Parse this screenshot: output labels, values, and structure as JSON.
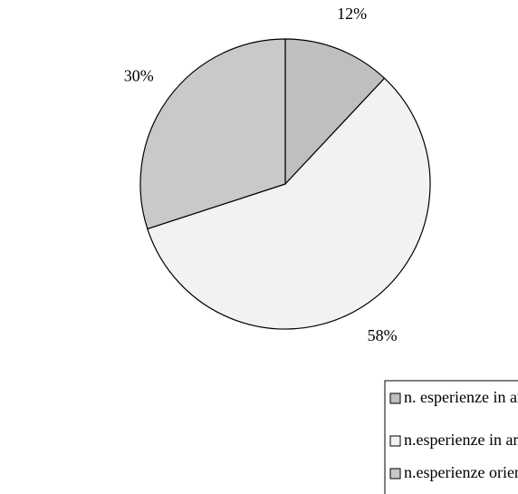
{
  "chart_data": {
    "type": "pie",
    "categories": [
      "n. esperienze in area non disciplinare",
      "n.esperienze in ambito disciplinare",
      "n.esperienze orientate alla realizzazione di un prodotto"
    ],
    "values": [
      12,
      58,
      30
    ],
    "value_labels": [
      "12%",
      "58%",
      "30%"
    ],
    "colors": [
      "#bfbfbf",
      "#f2f2f2",
      "#c9c9c9"
    ]
  }
}
